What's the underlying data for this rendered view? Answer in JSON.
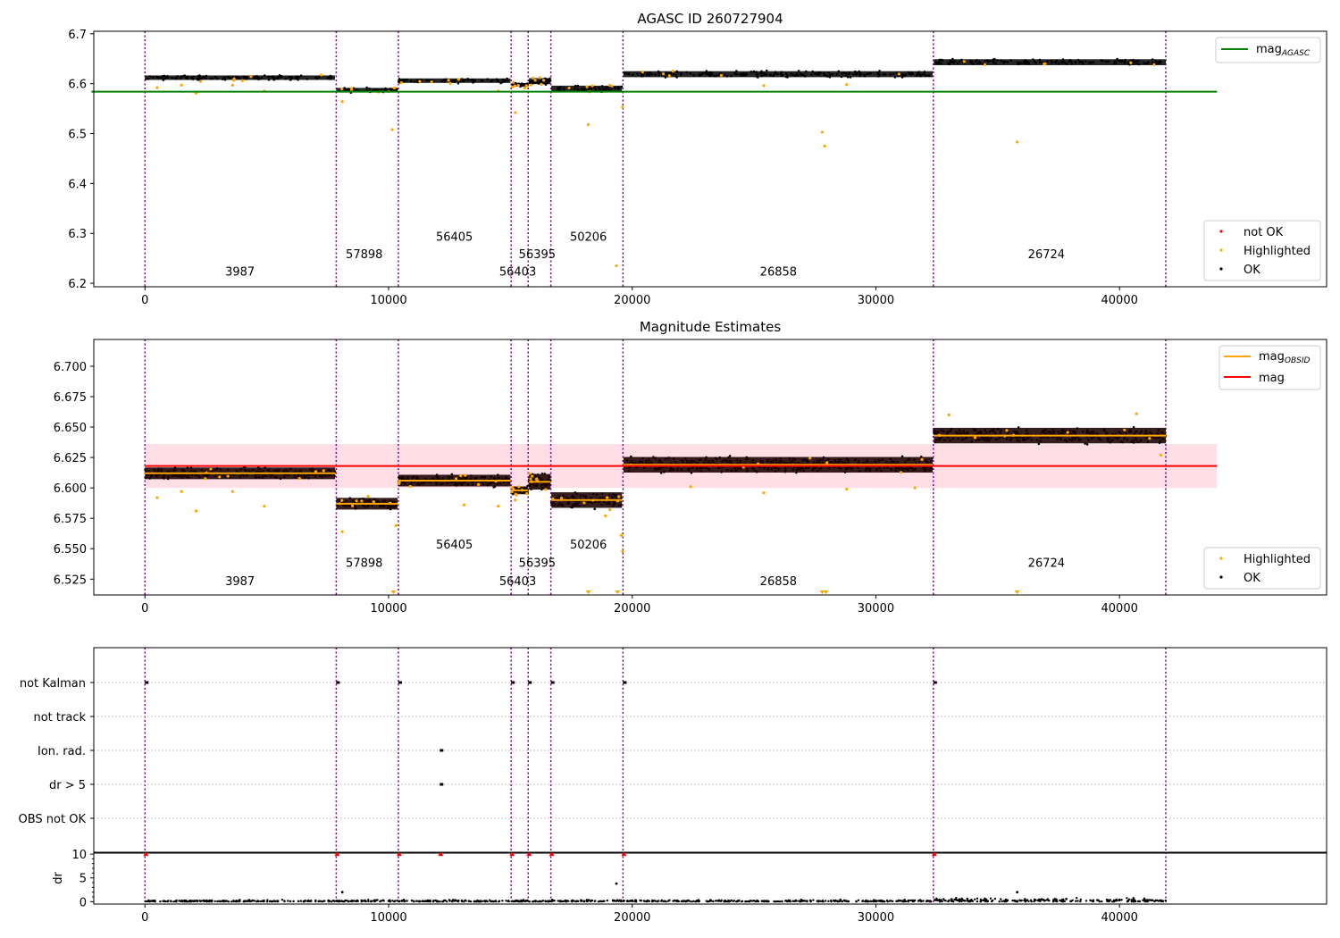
{
  "colors": {
    "ok": "#000000",
    "highlighted": "#ffa500",
    "not_ok": "#ff0000",
    "mag_agasc": "#008000",
    "mag": "#ff0000",
    "mag_obsid": "#ffa500",
    "band": "#ffc0cb",
    "boundary": "#800080",
    "grid": "#b0b0b0"
  },
  "chart_data": [
    {
      "type": "scatter",
      "title": "AGASC ID 260727904",
      "xlabel": "",
      "ylabel": "",
      "xlim": [
        -2100,
        48500
      ],
      "ylim": [
        6.193,
        6.705
      ],
      "xticks": [
        0,
        10000,
        20000,
        30000,
        40000
      ],
      "yticks": [
        6.2,
        6.3,
        6.4,
        6.5,
        6.6,
        6.7
      ],
      "ytick_decimals": 1,
      "mag_agasc": 6.584,
      "legend_top": {
        "location": "top-right",
        "entries": [
          {
            "label": "mag",
            "sub": "AGASC",
            "color": "#008000"
          }
        ]
      },
      "legend_bottom": {
        "location": "bottom-right",
        "entries": [
          {
            "label": "not OK",
            "color": "#ff0000"
          },
          {
            "label": "Highlighted",
            "color": "#ffa500"
          },
          {
            "label": "OK",
            "color": "#000000"
          }
        ]
      },
      "observations": [
        {
          "obsid": "3987",
          "x_start": 0,
          "x_end": 7800,
          "mean_mag": 6.612,
          "spread": 0.003
        },
        {
          "obsid": "57898",
          "x_start": 7850,
          "x_end": 10370,
          "mean_mag": 6.587,
          "spread": 0.003
        },
        {
          "obsid": "56405",
          "x_start": 10400,
          "x_end": 15000,
          "mean_mag": 6.606,
          "spread": 0.003
        },
        {
          "obsid": "56403",
          "x_start": 15050,
          "x_end": 15720,
          "mean_mag": 6.598,
          "spread": 0.002
        },
        {
          "obsid": "56395",
          "x_start": 15760,
          "x_end": 16650,
          "mean_mag": 6.605,
          "spread": 0.004
        },
        {
          "obsid": "50206",
          "x_start": 16680,
          "x_end": 19580,
          "mean_mag": 6.59,
          "spread": 0.004
        },
        {
          "obsid": "26858",
          "x_start": 19640,
          "x_end": 32330,
          "mean_mag": 6.619,
          "spread": 0.004
        },
        {
          "obsid": "26724",
          "x_start": 32380,
          "x_end": 41900,
          "mean_mag": 6.643,
          "spread": 0.004
        }
      ],
      "boundaries": [
        0,
        7850,
        10400,
        15030,
        15730,
        16660,
        19620,
        32360,
        41900
      ],
      "label_positions": [
        {
          "obsid": "3987",
          "x": 3900,
          "y": 6.215
        },
        {
          "obsid": "57898",
          "x": 9000,
          "y": 6.25
        },
        {
          "obsid": "56405",
          "x": 12700,
          "y": 6.285
        },
        {
          "obsid": "56403",
          "x": 15300,
          "y": 6.215
        },
        {
          "obsid": "56395",
          "x": 16100,
          "y": 6.25
        },
        {
          "obsid": "50206",
          "x": 18200,
          "y": 6.285
        },
        {
          "obsid": "26858",
          "x": 26000,
          "y": 6.215
        },
        {
          "obsid": "26724",
          "x": 37000,
          "y": 6.25
        }
      ],
      "outliers": [
        [
          500,
          6.592
        ],
        [
          1500,
          6.597
        ],
        [
          2100,
          6.581
        ],
        [
          3600,
          6.597
        ],
        [
          4900,
          6.585
        ],
        [
          8100,
          6.564
        ],
        [
          10150,
          6.508
        ],
        [
          14500,
          6.585
        ],
        [
          15200,
          6.542
        ],
        [
          18200,
          6.518
        ],
        [
          19350,
          6.235
        ],
        [
          19600,
          6.553
        ],
        [
          25400,
          6.596
        ],
        [
          27800,
          6.503
        ],
        [
          27900,
          6.475
        ],
        [
          28800,
          6.598
        ],
        [
          35800,
          6.483
        ]
      ]
    },
    {
      "type": "scatter",
      "title": "Magnitude Estimates",
      "xlabel": "",
      "ylabel": "",
      "xlim": [
        -2100,
        48500
      ],
      "ylim": [
        6.512,
        6.722
      ],
      "xticks": [
        0,
        10000,
        20000,
        30000,
        40000
      ],
      "yticks": [
        6.525,
        6.55,
        6.575,
        6.6,
        6.625,
        6.65,
        6.675,
        6.7
      ],
      "ytick_decimals": 3,
      "mag": 6.618,
      "mag_band": [
        6.6,
        6.636
      ],
      "mag_x_end": 44000,
      "legend_top": {
        "location": "top-right",
        "entries": [
          {
            "label": "mag",
            "sub": "OBSID",
            "color": "#ffa500"
          },
          {
            "label": "mag",
            "sub": "",
            "color": "#ff0000"
          }
        ]
      },
      "legend_bottom": {
        "location": "bottom-right",
        "entries": [
          {
            "label": "Highlighted",
            "color": "#ffa500"
          },
          {
            "label": "OK",
            "color": "#000000"
          }
        ]
      },
      "label_positions": [
        {
          "obsid": "3987",
          "x": 3900,
          "y": 6.52
        },
        {
          "obsid": "57898",
          "x": 9000,
          "y": 6.535
        },
        {
          "obsid": "56405",
          "x": 12700,
          "y": 6.55
        },
        {
          "obsid": "56403",
          "x": 15300,
          "y": 6.52
        },
        {
          "obsid": "56395",
          "x": 16100,
          "y": 6.535
        },
        {
          "obsid": "50206",
          "x": 18200,
          "y": 6.55
        },
        {
          "obsid": "26858",
          "x": 26000,
          "y": 6.52
        },
        {
          "obsid": "26724",
          "x": 37000,
          "y": 6.535
        }
      ],
      "outliers": [
        [
          500,
          6.592
        ],
        [
          1500,
          6.597
        ],
        [
          2100,
          6.581
        ],
        [
          3600,
          6.597
        ],
        [
          4900,
          6.585
        ],
        [
          8100,
          6.564
        ],
        [
          10300,
          6.569
        ],
        [
          13100,
          6.586
        ],
        [
          14500,
          6.585
        ],
        [
          15200,
          6.59
        ],
        [
          18900,
          6.577
        ],
        [
          19550,
          6.561
        ],
        [
          19600,
          6.548
        ],
        [
          22400,
          6.601
        ],
        [
          25400,
          6.596
        ],
        [
          28800,
          6.599
        ],
        [
          31600,
          6.6
        ],
        [
          33000,
          6.66
        ],
        [
          40700,
          6.661
        ],
        [
          41700,
          6.627
        ]
      ],
      "lower_markers": [
        10200,
        18200,
        19400,
        27800,
        27950,
        35800
      ]
    },
    {
      "type": "scatter",
      "title": "",
      "xlim": [
        -2100,
        48500
      ],
      "flag_categories": [
        "not Kalman",
        "not track",
        "Ion. rad.",
        "dr > 5",
        "OBS not OK"
      ],
      "flag_points": [
        {
          "category": "not Kalman",
          "x": [
            0,
            7850,
            10400,
            15030,
            15730,
            16660,
            19620,
            32360
          ]
        },
        {
          "category": "Ion. rad.",
          "x": [
            12100
          ]
        },
        {
          "category": "dr > 5",
          "x": [
            12100
          ]
        }
      ]
    },
    {
      "type": "scatter",
      "title": "",
      "ylabel": "dr",
      "xlim": [
        -2100,
        48500
      ],
      "ylim": [
        -0.5,
        10.4
      ],
      "xticks": [
        0,
        10000,
        20000,
        30000,
        40000
      ],
      "yticks": [
        0,
        5,
        10
      ],
      "dr_clip_markers": [
        0,
        7850,
        10400,
        12100,
        15030,
        15730,
        16660,
        19620,
        32360
      ],
      "dr_outliers": [
        [
          8100,
          2.0
        ],
        [
          19350,
          3.8
        ],
        [
          35800,
          2.0
        ]
      ]
    }
  ]
}
